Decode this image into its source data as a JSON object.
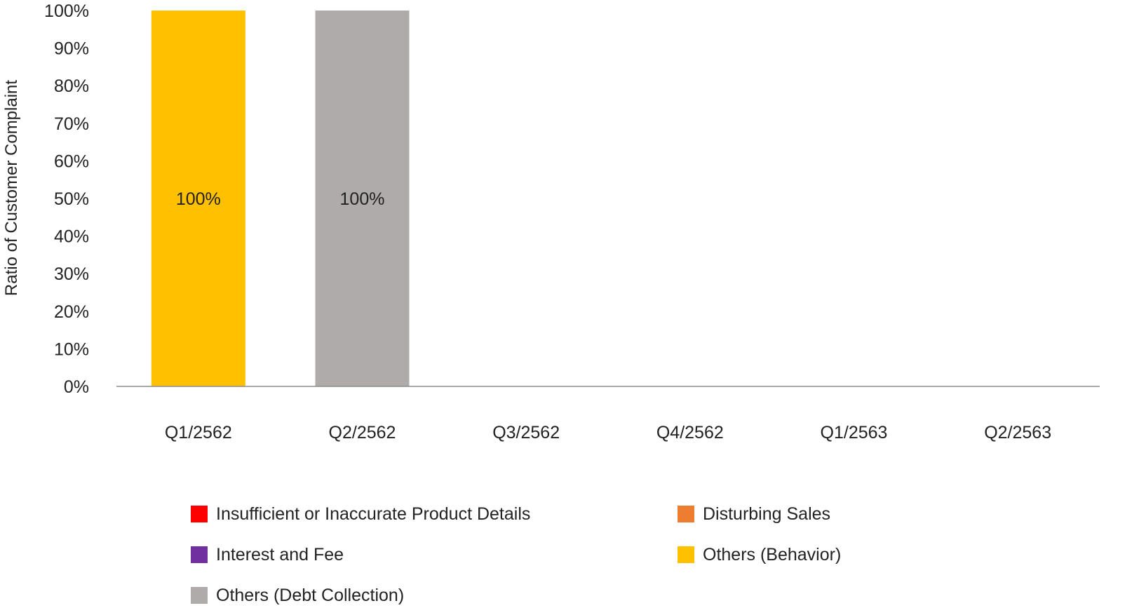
{
  "chart_data": {
    "type": "bar",
    "stacked": true,
    "ylabel": "Ratio of Customer Complaint",
    "xlabel": "",
    "ylim": [
      0,
      100
    ],
    "y_tick_step": 10,
    "y_tick_suffix": "%",
    "y_ticks": [
      "0%",
      "10%",
      "20%",
      "30%",
      "40%",
      "50%",
      "60%",
      "70%",
      "80%",
      "90%",
      "100%"
    ],
    "grid": false,
    "legend_position": "bottom",
    "categories": [
      "Q1/2562",
      "Q2/2562",
      "Q3/2562",
      "Q4/2562",
      "Q1/2563",
      "Q2/2563"
    ],
    "series": [
      {
        "name": "Insufficient or Inaccurate Product Details",
        "color": "#FF0000",
        "values": [
          0,
          0,
          0,
          0,
          0,
          0
        ]
      },
      {
        "name": "Disturbing Sales",
        "color": "#ED7D31",
        "values": [
          0,
          0,
          0,
          0,
          0,
          0
        ]
      },
      {
        "name": "Interest and Fee",
        "color": "#7030A0",
        "values": [
          0,
          0,
          0,
          0,
          0,
          0
        ]
      },
      {
        "name": "Others (Behavior)",
        "color": "#FFC000",
        "values": [
          100,
          0,
          0,
          0,
          0,
          0
        ]
      },
      {
        "name": "Others (Debt Collection)",
        "color": "#AFABAB",
        "values": [
          0,
          100,
          0,
          0,
          0,
          0
        ]
      }
    ],
    "data_labels": [
      {
        "category": "Q1/2562",
        "series": "Others (Behavior)",
        "text": "100%"
      },
      {
        "category": "Q2/2562",
        "series": "Others (Debt Collection)",
        "text": "100%"
      }
    ]
  }
}
